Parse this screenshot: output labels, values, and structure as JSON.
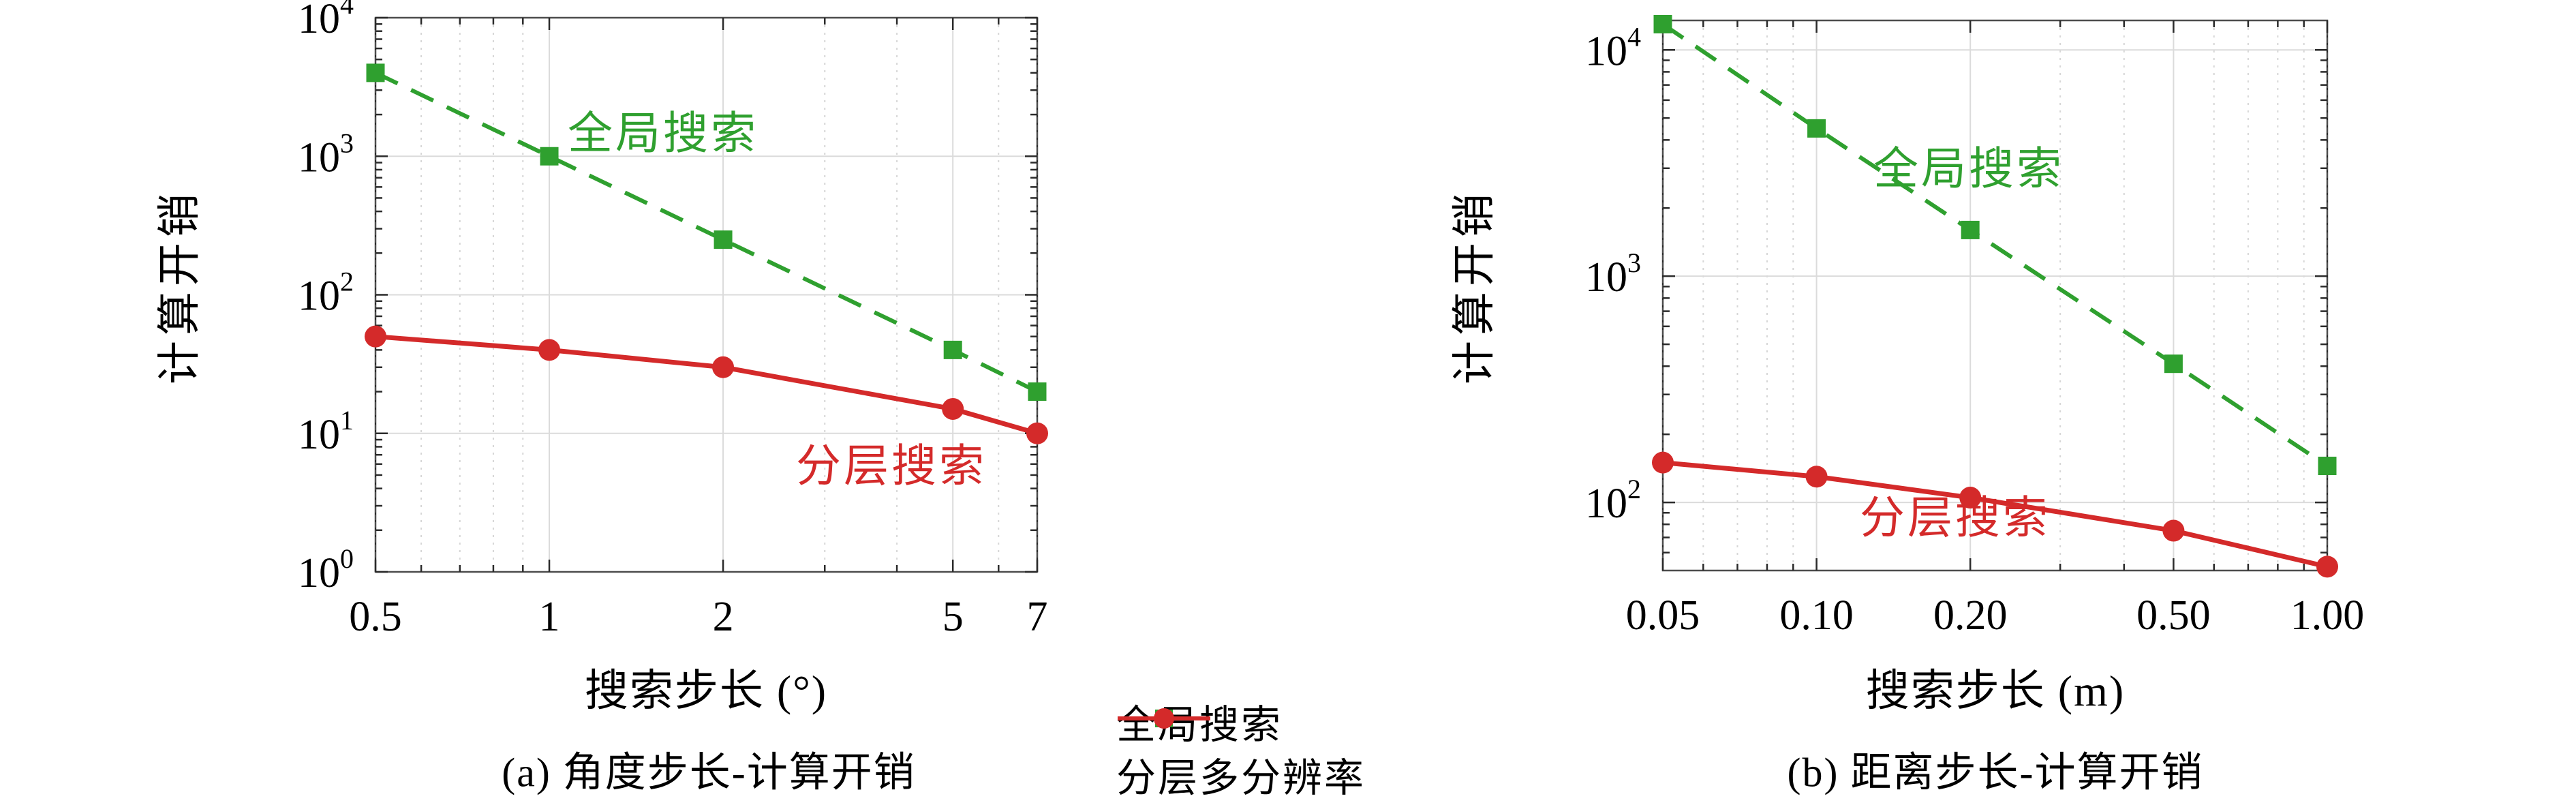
{
  "figure": {
    "background": "#ffffff",
    "description_left_panel": "角度步长-计算开销",
    "description_right_panel": "距离步长-计算开销"
  },
  "colors": {
    "global_search_green": "#2FA02F",
    "hierarchical_red": "#D42A2A",
    "grid_major": "#DBDBDB",
    "grid_minor": "#D6D6D6",
    "spine": "#4D4D4D",
    "tick": "#2B2B2B",
    "text": "#000000"
  },
  "legend": {
    "position": "bottom-center",
    "items": [
      {
        "label": "全局搜索",
        "color": "#2FA02F",
        "line": "dashed",
        "marker": "square"
      },
      {
        "label": "分层多分辨率",
        "color": "#D42A2A",
        "line": "solid",
        "marker": "circle"
      }
    ]
  },
  "chart_data": [
    {
      "id": "a",
      "type": "line",
      "caption": "(a) 角度步长-计算开销",
      "xlabel": "搜索步长 (°)",
      "ylabel": "计算开销",
      "x_scale": "log",
      "y_scale": "log",
      "grid": true,
      "xlim": [
        0.5,
        7
      ],
      "ylim": [
        1,
        10000
      ],
      "x_ticks": [
        {
          "v": 0.5,
          "label": "0.5"
        },
        {
          "v": 1,
          "label": "1"
        },
        {
          "v": 2,
          "label": "2"
        },
        {
          "v": 5,
          "label": "5"
        },
        {
          "v": 7,
          "label": "7"
        }
      ],
      "y_ticks": [
        {
          "v": 1,
          "label": "10^0"
        },
        {
          "v": 10,
          "label": "10^1"
        },
        {
          "v": 100,
          "label": "10^2"
        },
        {
          "v": 1000,
          "label": "10^3"
        },
        {
          "v": 10000,
          "label": "10^4"
        }
      ],
      "x_minor": [
        0.6,
        0.7,
        0.8,
        0.9,
        3,
        4,
        6
      ],
      "series": [
        {
          "name": "全局搜索",
          "color": "#2FA02F",
          "line": "dashed",
          "marker": "square",
          "x": [
            0.5,
            1,
            2,
            5,
            7
          ],
          "y": [
            4000,
            1000,
            250,
            40,
            20
          ]
        },
        {
          "name": "分层搜索",
          "color": "#D42A2A",
          "line": "solid",
          "marker": "circle",
          "x": [
            0.5,
            1,
            2,
            5,
            7
          ],
          "y": [
            50,
            40,
            30,
            15,
            10
          ]
        }
      ],
      "annotations": [
        {
          "text": "全局搜索",
          "color": "#2FA02F"
        },
        {
          "text": "分层搜索",
          "color": "#D42A2A"
        }
      ]
    },
    {
      "id": "b",
      "type": "line",
      "caption": "(b) 距离步长-计算开销",
      "xlabel": "搜索步长 (m)",
      "ylabel": "计算开销",
      "x_scale": "log",
      "y_scale": "log",
      "grid": true,
      "xlim": [
        0.05,
        1.0
      ],
      "ylim": [
        50,
        13500
      ],
      "x_ticks": [
        {
          "v": 0.05,
          "label": "0.05"
        },
        {
          "v": 0.1,
          "label": "0.10"
        },
        {
          "v": 0.2,
          "label": "0.20"
        },
        {
          "v": 0.5,
          "label": "0.50"
        },
        {
          "v": 1.0,
          "label": "1.00"
        }
      ],
      "y_ticks": [
        {
          "v": 100,
          "label": "10^2"
        },
        {
          "v": 1000,
          "label": "10^3"
        },
        {
          "v": 10000,
          "label": "10^4"
        }
      ],
      "x_minor": [
        0.06,
        0.07,
        0.08,
        0.09,
        0.3,
        0.4,
        0.6,
        0.7,
        0.8,
        0.9
      ],
      "series": [
        {
          "name": "全局搜索",
          "color": "#2FA02F",
          "line": "dashed",
          "marker": "square",
          "x": [
            0.05,
            0.1,
            0.2,
            0.5,
            1.0
          ],
          "y": [
            13000,
            4500,
            1600,
            410,
            145
          ]
        },
        {
          "name": "分层搜索",
          "color": "#D42A2A",
          "line": "solid",
          "marker": "circle",
          "x": [
            0.05,
            0.1,
            0.2,
            0.5,
            1.0
          ],
          "y": [
            150,
            130,
            105,
            75,
            52
          ]
        }
      ],
      "annotations": [
        {
          "text": "全局搜索",
          "color": "#2FA02F"
        },
        {
          "text": "分层搜索",
          "color": "#D42A2A"
        }
      ]
    }
  ]
}
